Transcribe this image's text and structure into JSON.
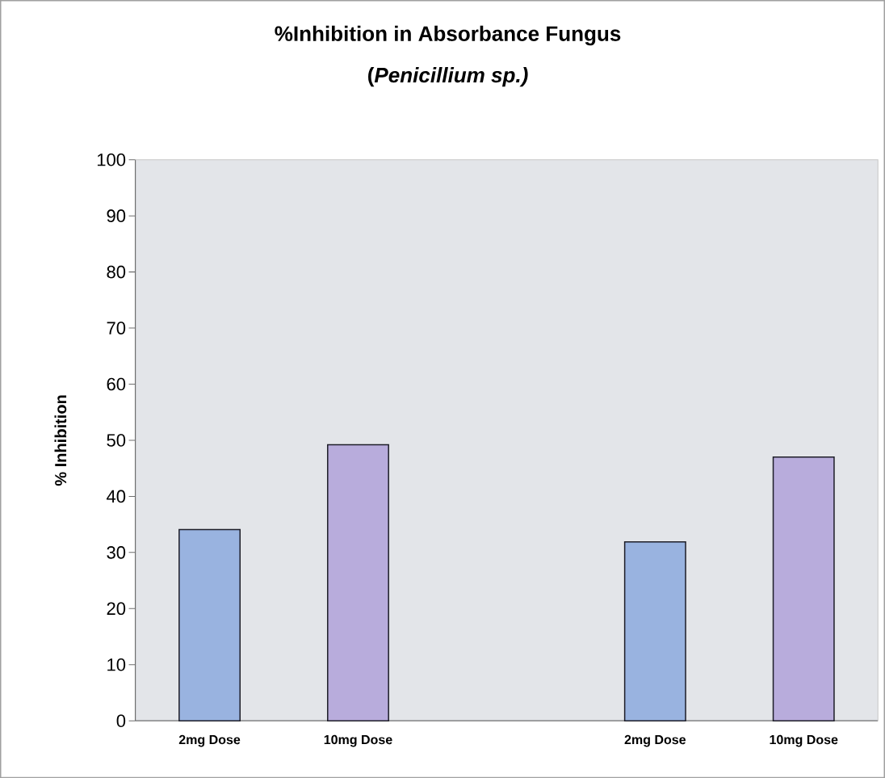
{
  "chart_data": {
    "type": "bar",
    "title": "%Inhibition  in Absorbance Fungus",
    "subtitle": "(*Penicillium sp.)*",
    "ylabel": "% Inhibition",
    "categories": [
      "2mg Dose",
      "10mg Dose",
      null,
      "2mg Dose",
      "10mg Dose"
    ],
    "values": [
      34.1,
      49.2,
      null,
      31.9,
      47.0
    ],
    "colors": [
      "#99b3e0",
      "#b8acdc",
      null,
      "#99b3e0",
      "#b8acdc"
    ],
    "ylim": [
      0,
      100
    ],
    "yticks": [
      0,
      10,
      20,
      30,
      40,
      50,
      60,
      70,
      80,
      90,
      100
    ],
    "grid": false
  }
}
